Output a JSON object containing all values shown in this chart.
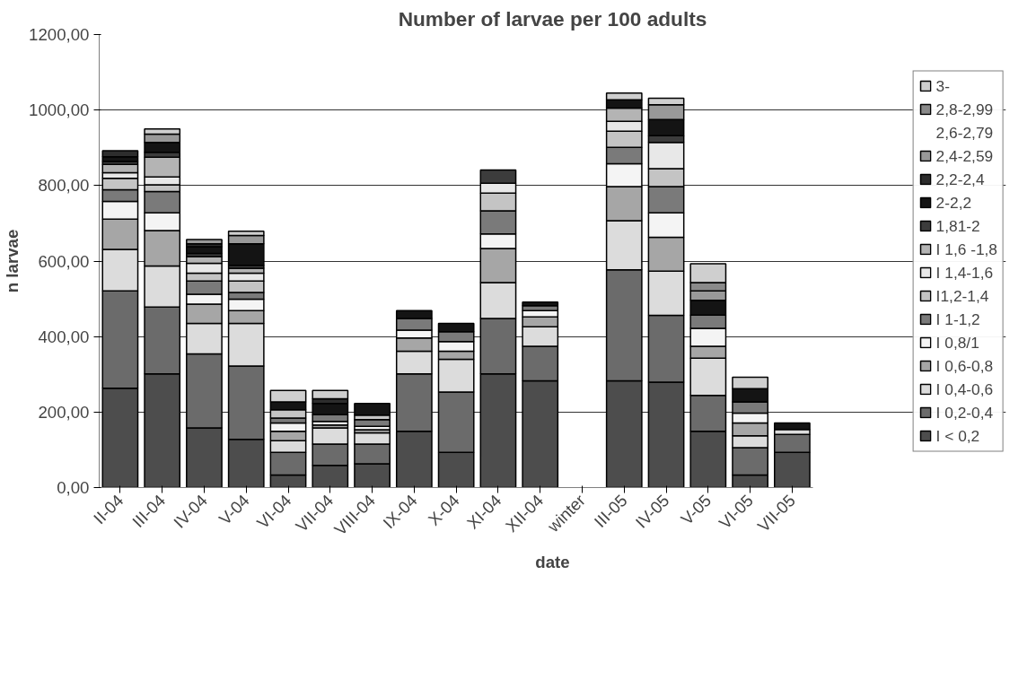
{
  "chart_data": {
    "type": "bar",
    "stacked": true,
    "title": "Number of larvae per 100 adults",
    "xlabel": "date",
    "ylabel": "n larvae",
    "categories": [
      "II-04",
      "III-04",
      "IV-04",
      "V-04",
      "VI-04",
      "VII-04",
      "VIII-04",
      "IX-04",
      "X-04",
      "XI-04",
      "XII-04",
      "winter",
      "III-05",
      "IV-05",
      "V-05",
      "VI-05",
      "VII-05"
    ],
    "ylim": [
      0,
      1200
    ],
    "yticks": [
      {
        "value": 0,
        "label": "0,00"
      },
      {
        "value": 200,
        "label": "200,00"
      },
      {
        "value": 400,
        "label": "400,00"
      },
      {
        "value": 600,
        "label": "600,00"
      },
      {
        "value": 800,
        "label": "800,00"
      },
      {
        "value": 1000,
        "label": "1000,00"
      },
      {
        "value": 1200,
        "label": "1200,00"
      }
    ],
    "grid": "y",
    "legend": "right",
    "series": [
      {
        "name": "I < 0,2",
        "color": "#4d4d4d",
        "values": [
          263,
          301,
          158,
          128,
          33,
          59,
          63,
          149,
          93,
          301,
          283,
          null,
          283,
          279,
          149,
          33,
          93
        ]
      },
      {
        "name": "I 0,2-0,4",
        "color": "#6b6b6b",
        "values": [
          258,
          177,
          196,
          194,
          60,
          56,
          52,
          152,
          160,
          147,
          91,
          null,
          294,
          177,
          95,
          73,
          48
        ]
      },
      {
        "name": "I 0,4-0,6",
        "color": "#dcdcdc",
        "values": [
          110,
          109,
          81,
          113,
          31,
          43,
          30,
          60,
          87,
          95,
          52,
          null,
          130,
          117,
          99,
          31,
          13
        ]
      },
      {
        "name": "I 0,6-0,8",
        "color": "#a6a6a6",
        "values": [
          80,
          94,
          51,
          34,
          25,
          8,
          8,
          35,
          21,
          90,
          26,
          null,
          90,
          90,
          31,
          34,
          0
        ]
      },
      {
        "name": "I 0,8/1",
        "color": "#f4f4f4",
        "values": [
          47,
          47,
          26,
          30,
          22,
          9,
          9,
          21,
          26,
          39,
          17,
          null,
          61,
          65,
          48,
          26,
          0
        ]
      },
      {
        "name": "I 1-1,2",
        "color": "#7a7a7a",
        "values": [
          31,
          56,
          35,
          18,
          13,
          18,
          18,
          31,
          26,
          61,
          13,
          null,
          43,
          69,
          35,
          30,
          0
        ]
      },
      {
        "name": "I1,2-1,4",
        "color": "#c4c4c4",
        "values": [
          30,
          18,
          21,
          30,
          22,
          0,
          12,
          0,
          0,
          47,
          0,
          null,
          43,
          48,
          0,
          0,
          0
        ]
      },
      {
        "name": "I 1,4-1,6",
        "color": "#e8e8e8",
        "values": [
          15,
          21,
          26,
          21,
          0,
          0,
          0,
          0,
          0,
          26,
          0,
          null,
          26,
          69,
          0,
          0,
          0
        ]
      },
      {
        "name": "I 1,6 -1,8",
        "color": "#b4b4b4",
        "values": [
          22,
          52,
          18,
          13,
          0,
          0,
          0,
          0,
          0,
          0,
          0,
          null,
          35,
          0,
          0,
          0,
          0
        ]
      },
      {
        "name": "1,81-2",
        "color": "#3c3c3c",
        "values": [
          8,
          13,
          8,
          8,
          0,
          0,
          0,
          0,
          0,
          35,
          0,
          null,
          0,
          18,
          0,
          0,
          0
        ]
      },
      {
        "name": "2-2,2",
        "color": "#141414",
        "values": [
          12,
          26,
          18,
          57,
          21,
          30,
          31,
          21,
          22,
          0,
          9,
          null,
          22,
          43,
          39,
          35,
          17
        ]
      },
      {
        "name": "2,2-2,4",
        "color": "#2d2d2d",
        "values": [
          16,
          0,
          8,
          0,
          0,
          12,
          0,
          0,
          0,
          0,
          0,
          null,
          0,
          0,
          0,
          0,
          0
        ]
      },
      {
        "name": "2,4-2,59",
        "color": "#999999",
        "values": [
          0,
          22,
          11,
          22,
          0,
          0,
          0,
          0,
          0,
          0,
          0,
          null,
          0,
          39,
          25,
          0,
          0
        ]
      },
      {
        "name": "2,6-2,79",
        "color": "#5c5c5c",
        "values": [
          0,
          0,
          0,
          0,
          0,
          0,
          0,
          0,
          0,
          0,
          0,
          null,
          0,
          0,
          0,
          0,
          0
        ]
      },
      {
        "name": "2,8-2,99",
        "color": "#8a8a8a",
        "values": [
          0,
          0,
          0,
          0,
          0,
          0,
          0,
          0,
          0,
          0,
          0,
          null,
          0,
          0,
          22,
          0,
          0
        ]
      },
      {
        "name": "3-",
        "color": "#cfcfcf",
        "values": [
          0,
          14,
          0,
          11,
          30,
          22,
          0,
          0,
          0,
          0,
          0,
          null,
          18,
          17,
          50,
          30,
          0
        ]
      }
    ]
  }
}
